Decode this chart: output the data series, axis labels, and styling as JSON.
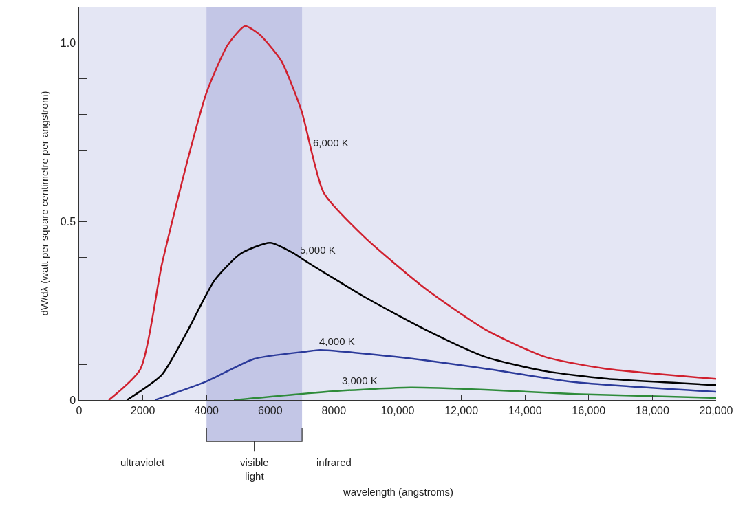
{
  "chart_data": {
    "type": "line",
    "ylabel": "dW/dλ (watt per square centimetre per angstrom)",
    "xlim": [
      0,
      20000
    ],
    "ylim": [
      0,
      1.1
    ],
    "xticks": [
      0,
      2000,
      4000,
      6000,
      8000,
      {
        "value": 10000,
        "label": "10,000"
      },
      {
        "value": 12000,
        "label": "12,000"
      },
      {
        "value": 14000,
        "label": "14,000"
      },
      {
        "value": 16000,
        "label": "16,000"
      },
      {
        "value": 18000,
        "label": "18,000"
      },
      {
        "value": 20000,
        "label": "20,000"
      }
    ],
    "yticks": [
      0,
      {
        "value": 0.1,
        "label": null
      },
      {
        "value": 0.2,
        "label": null
      },
      {
        "value": 0.3,
        "label": null
      },
      {
        "value": 0.4,
        "label": null
      },
      {
        "value": 0.5,
        "label": "0.5"
      },
      {
        "value": 0.6,
        "label": null
      },
      {
        "value": 0.7,
        "label": null
      },
      {
        "value": 0.8,
        "label": null
      },
      {
        "value": 0.9,
        "label": null
      },
      {
        "value": 1,
        "label": "1.0"
      }
    ],
    "grid": false,
    "legend": false,
    "marker": "none",
    "line_style": "solid",
    "series": [
      {
        "name": "6,000 K",
        "color": "#d0202e",
        "x": [
          930,
          1920,
          2600,
          3420,
          4000,
          4670,
          5210,
          5660,
          6340,
          6980,
          7680,
          8970,
          10850,
          12740,
          14620,
          16500,
          20000
        ],
        "values": [
          0,
          0.086,
          0.38,
          0.676,
          0.86,
          0.994,
          1.046,
          1.023,
          0.95,
          0.81,
          0.58,
          0.455,
          0.313,
          0.198,
          0.121,
          0.088,
          0.059
        ]
      },
      {
        "name": "5,000 K",
        "color": "#000000",
        "x": [
          1500,
          2600,
          3420,
          4260,
          5080,
          6000,
          6750,
          7090,
          8970,
          10850,
          12740,
          14620,
          16500,
          20000
        ],
        "values": [
          0,
          0.071,
          0.196,
          0.336,
          0.41,
          0.44,
          0.41,
          0.39,
          0.288,
          0.198,
          0.121,
          0.081,
          0.06,
          0.042
        ]
      },
      {
        "name": "4,000 K",
        "color": "#2b3a9a",
        "x": [
          2380,
          4000,
          5490,
          7160,
          7570,
          9920,
          12740,
          15570,
          20000
        ],
        "values": [
          0,
          0.052,
          0.115,
          0.136,
          0.14,
          0.121,
          0.088,
          0.05,
          0.023
        ]
      },
      {
        "name": "3,000 K",
        "color": "#2e8b3a",
        "x": [
          4860,
          8040,
          10400,
          12740,
          15570,
          20000
        ],
        "values": [
          0,
          0.025,
          0.035,
          0.029,
          0.017,
          0.006
        ]
      }
    ],
    "bands": [
      {
        "axis": "x",
        "from": 4000,
        "to": 7000,
        "label": "visible\nlight",
        "color": "#c3c6e6"
      }
    ],
    "annotations": [
      "ultraviolet",
      "infrared",
      "wavelength (angstroms)"
    ]
  }
}
